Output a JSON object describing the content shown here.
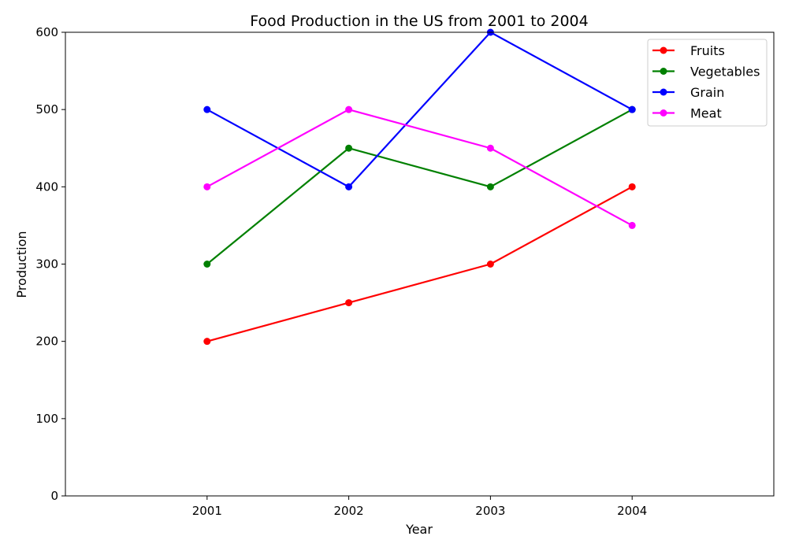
{
  "chart_data": {
    "type": "line",
    "title": "Food Production in the US from 2001 to 2004",
    "xlabel": "Year",
    "ylabel": "Production",
    "x": [
      "2001",
      "2002",
      "2003",
      "2004"
    ],
    "xlim": [
      2000,
      2005
    ],
    "ylim": [
      0,
      600
    ],
    "yticks": [
      0,
      100,
      200,
      300,
      400,
      500,
      600
    ],
    "grid": false,
    "legend_position": "top-right",
    "series": [
      {
        "name": "Fruits",
        "color": "#ff0000",
        "values": [
          200,
          250,
          300,
          400
        ]
      },
      {
        "name": "Vegetables",
        "color": "#008000",
        "values": [
          300,
          450,
          400,
          500
        ]
      },
      {
        "name": "Grain",
        "color": "#0000ff",
        "values": [
          500,
          400,
          600,
          500
        ]
      },
      {
        "name": "Meat",
        "color": "#ff00ff",
        "values": [
          400,
          500,
          450,
          350
        ]
      }
    ]
  }
}
